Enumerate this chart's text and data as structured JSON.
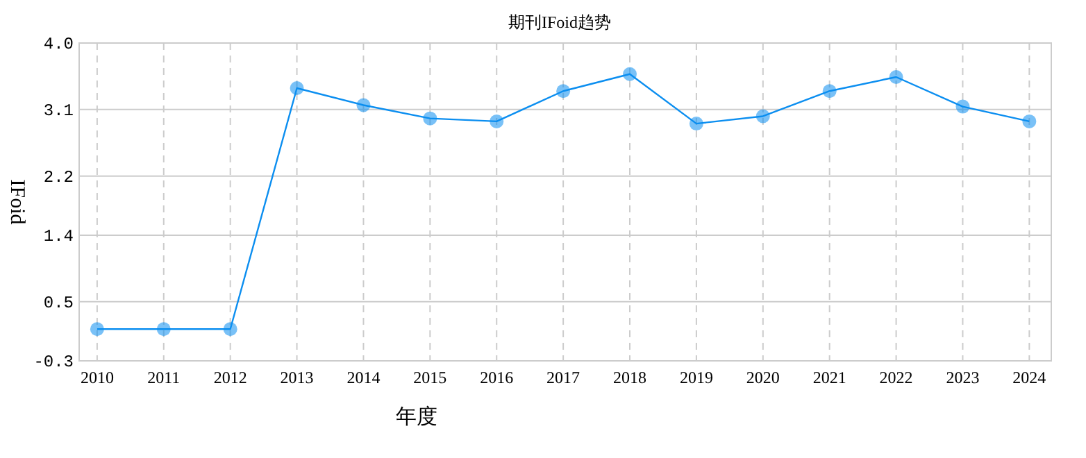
{
  "chart_data": {
    "type": "line",
    "title": "期刊IFoid趋势",
    "xlabel": "年度",
    "ylabel": "IFoid",
    "categories": [
      "2010",
      "2011",
      "2012",
      "2013",
      "2014",
      "2015",
      "2016",
      "2017",
      "2018",
      "2019",
      "2020",
      "2021",
      "2022",
      "2023",
      "2024"
    ],
    "series": [
      {
        "color": "#0b8ef0",
        "values": [
          0.13,
          0.13,
          0.13,
          3.39,
          3.16,
          2.98,
          2.94,
          3.35,
          3.58,
          2.91,
          3.01,
          3.35,
          3.54,
          3.14,
          2.94
        ]
      }
    ],
    "ylim": [
      -0.3,
      4.0
    ],
    "yticks": [
      -0.3,
      0.5,
      1.4,
      2.2,
      3.1,
      {
        "value": 4.0,
        "label": "4.0"
      }
    ],
    "grid": true,
    "marker": "circle",
    "line_style": "solid"
  }
}
